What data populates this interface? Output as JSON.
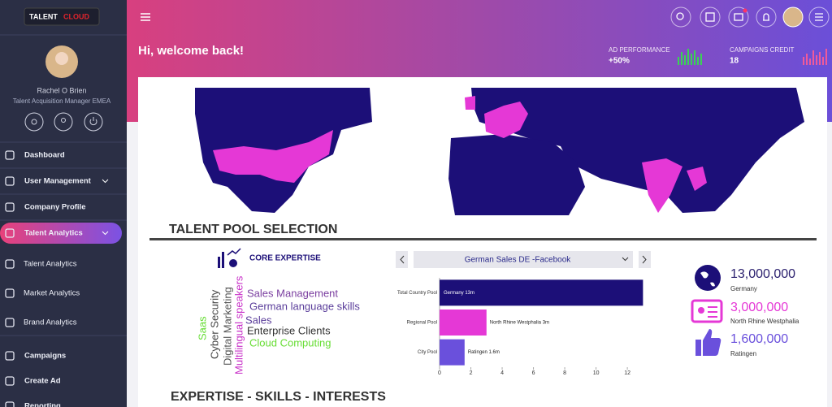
{
  "brand": {
    "part1": "TALENT",
    "part2": "CLOUD"
  },
  "user": {
    "name": "Rachel O Brien",
    "role": "Talent Acquisition Manager EMEA"
  },
  "nav": [
    "Dashboard",
    "User Management",
    "Company Profile",
    "Talent Analytics",
    "Talent Analytics",
    "Market Analytics",
    "Brand Analytics",
    "Campaigns",
    "Create Ad",
    "Reporting"
  ],
  "header": {
    "greeting": "Hi, welcome back!"
  },
  "stats": [
    {
      "label": "AD PERFORMANCE",
      "value": "+50%"
    },
    {
      "label": "CAMPAIGNS CREDIT",
      "value": "18"
    }
  ],
  "sections": [
    "TALENT POOL SELECTION",
    "EXPERTISE - SKILLS - INTERESTS"
  ],
  "core_expertise": "CORE EXPERTISE",
  "words": {
    "horizontal": [
      "Sales Management",
      "German language skills",
      "Sales",
      "Enterprise Clients",
      "Cloud Computing"
    ],
    "vertical": [
      "Saas",
      "Cyber Security",
      "Digital Marketing",
      "Multilingual speakers"
    ]
  },
  "dropdown": "German Sales DE -Facebook",
  "chart_data": {
    "type": "hbar",
    "categories": [
      "Total Country Pool",
      "Regional Pool",
      "City Pool"
    ],
    "values": [
      13,
      3,
      1.6
    ],
    "value_labels": [
      "Germany 13m",
      "North Rhine Westphalia 3m",
      "Ratingen 1.6m"
    ],
    "colors": [
      "#1c0f78",
      "#e538d6",
      "#6a50dc"
    ],
    "xlim": [
      0,
      13.5
    ],
    "xticks": [
      0,
      2,
      4,
      6,
      8,
      10,
      12
    ]
  },
  "kpis": [
    {
      "value": "13,000,000",
      "label": "Germany"
    },
    {
      "value": "3,000,000",
      "label": "North Rhine Westphalia"
    },
    {
      "value": "1,600,000",
      "label": "Ratingen"
    }
  ]
}
